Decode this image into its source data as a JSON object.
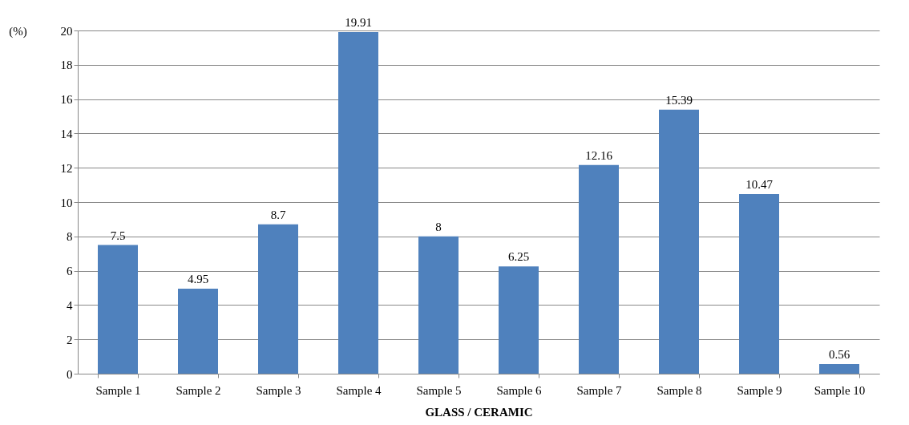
{
  "chart_data": {
    "type": "bar",
    "xlabel": "GLASS / CERAMIC",
    "ylabel": "(%)",
    "categories": [
      "Sample 1",
      "Sample 2",
      "Sample 3",
      "Sample 4",
      "Sample 5",
      "Sample 6",
      "Sample 7",
      "Sample 8",
      "Sample 9",
      "Sample 10"
    ],
    "values": [
      7.5,
      4.95,
      8.7,
      19.91,
      8,
      6.25,
      12.16,
      15.39,
      10.47,
      0.56
    ],
    "color": "#4f81bd",
    "ylim": [
      0,
      20
    ],
    "yticks": [
      0,
      2,
      4,
      6,
      8,
      10,
      12,
      14,
      16,
      18,
      20
    ],
    "grid": "y",
    "data_labels": true
  }
}
